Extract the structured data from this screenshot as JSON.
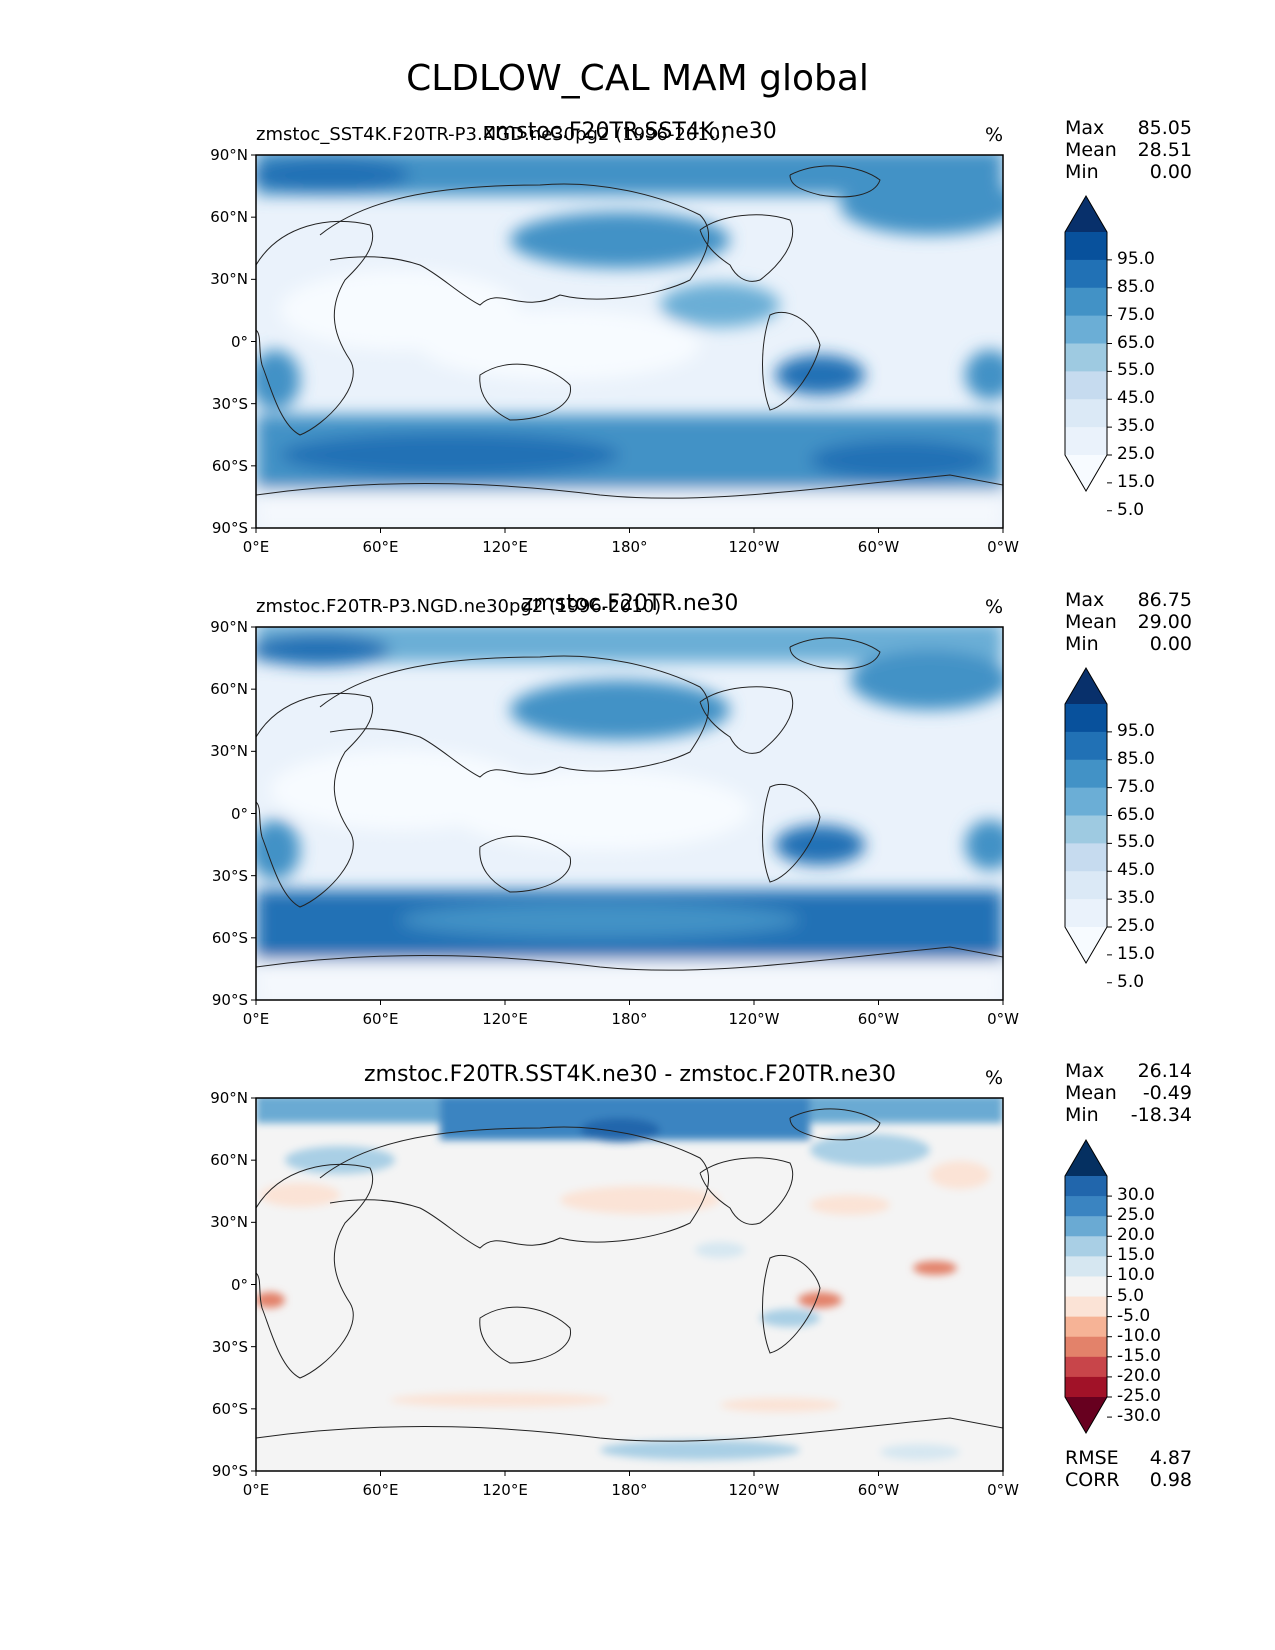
{
  "title": "CLDLOW_CAL MAM global",
  "lat_ticks": [
    "90°N",
    "60°N",
    "30°N",
    "0°",
    "30°S",
    "60°S",
    "90°S"
  ],
  "lon_ticks": [
    "0°E",
    "60°E",
    "120°E",
    "180°",
    "120°W",
    "60°W",
    "0°W"
  ],
  "stat_labels": {
    "max": "Max",
    "mean": "Mean",
    "min": "Min",
    "rmse": "RMSE",
    "corr": "CORR"
  },
  "panels": [
    {
      "left_label": "zmstoc_SST4K.F20TR-P3.NGD.ne30pg2 (1996-2010)",
      "center_title": "zmstoc.F20TR.SST4K.ne30",
      "units": "%",
      "max": "85.05",
      "mean": "28.51",
      "min": "0.00",
      "colorbar": {
        "labels": [
          "95.0",
          "85.0",
          "75.0",
          "65.0",
          "55.0",
          "45.0",
          "35.0",
          "25.0",
          "15.0",
          "5.0"
        ],
        "colors": [
          "#08306b",
          "#08519c",
          "#2171b5",
          "#4292c6",
          "#6baed6",
          "#9ecae1",
          "#c6dbef",
          "#dbe9f6",
          "#eaf2fb",
          "#f7fbff"
        ]
      }
    },
    {
      "left_label": "zmstoc.F20TR-P3.NGD.ne30pg2 (1996-2010)",
      "center_title": "zmstoc.F20TR.ne30",
      "units": "%",
      "max": "86.75",
      "mean": "29.00",
      "min": "0.00",
      "colorbar": {
        "labels": [
          "95.0",
          "85.0",
          "75.0",
          "65.0",
          "55.0",
          "45.0",
          "35.0",
          "25.0",
          "15.0",
          "5.0"
        ],
        "colors": [
          "#08306b",
          "#08519c",
          "#2171b5",
          "#4292c6",
          "#6baed6",
          "#9ecae1",
          "#c6dbef",
          "#dbe9f6",
          "#eaf2fb",
          "#f7fbff"
        ]
      }
    },
    {
      "left_label": "",
      "center_title": "zmstoc.F20TR.SST4K.ne30 - zmstoc.F20TR.ne30",
      "units": "%",
      "max": "26.14",
      "mean": "-0.49",
      "min": "-18.34",
      "rmse": "4.87",
      "corr": "0.98",
      "colorbar": {
        "labels": [
          "30.0",
          "25.0",
          "20.0",
          "15.0",
          "10.0",
          "5.0",
          "-5.0",
          "-10.0",
          "-15.0",
          "-20.0",
          "-25.0",
          "-30.0"
        ],
        "colors": [
          "#053061",
          "#2166ac",
          "#3a84c1",
          "#6aaad3",
          "#a9cfe5",
          "#d6e7f1",
          "#f4f4f4",
          "#fbe3d6",
          "#f6b396",
          "#e3826a",
          "#c8454a",
          "#a11228",
          "#67001f"
        ]
      }
    }
  ]
}
